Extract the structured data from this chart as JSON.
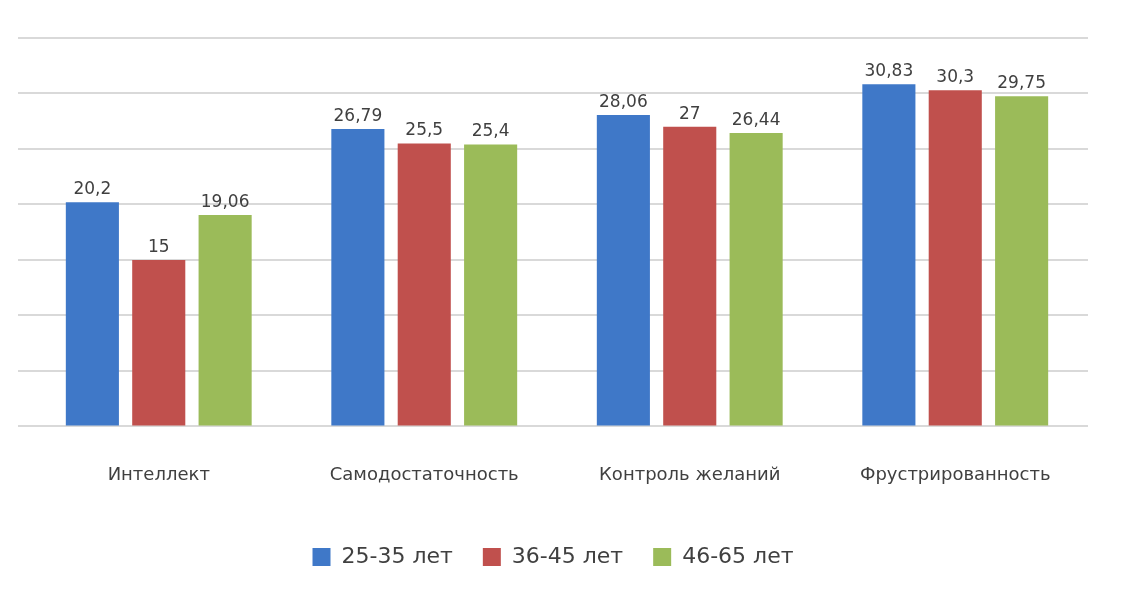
{
  "chart_data": {
    "type": "bar",
    "categories": [
      "Интеллект",
      "Самодостаточность",
      "Контроль желаний",
      "Фрустрированность"
    ],
    "series": [
      {
        "name": "25-35 лет",
        "color": "#3f78c8",
        "values": [
          20.2,
          26.79,
          28.06,
          30.83
        ],
        "value_labels": [
          "20,2",
          "26,79",
          "28,06",
          "30,83"
        ]
      },
      {
        "name": "36-45 лет",
        "color": "#c0504d",
        "values": [
          15,
          25.5,
          27,
          30.3
        ],
        "value_labels": [
          "15",
          "25,5",
          "27",
          "30,3"
        ]
      },
      {
        "name": "46-65 лет",
        "color": "#9bbb59",
        "values": [
          19.06,
          25.4,
          26.44,
          29.75
        ],
        "value_labels": [
          "19,06",
          "25,4",
          "26,44",
          "29,75"
        ]
      }
    ],
    "grid": "y",
    "legend": "bottom",
    "tick_labels": "x"
  }
}
